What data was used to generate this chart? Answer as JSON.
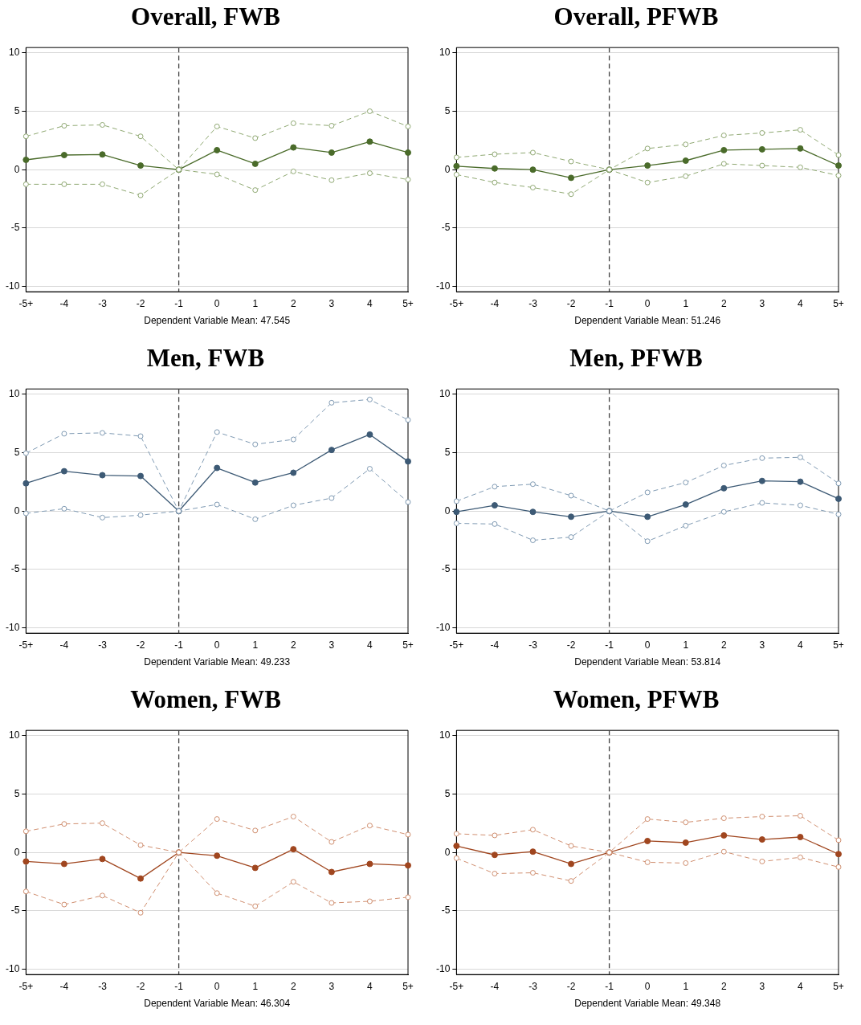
{
  "chart_data": [
    {
      "type": "line",
      "title": "Overall, FWB",
      "xlabel": "Dependent Variable Mean: 47.545",
      "categories": [
        "-5+",
        "-4",
        "-3",
        "-2",
        "-1",
        "0",
        "1",
        "2",
        "3",
        "4",
        "5+"
      ],
      "ylim": [
        -10.45,
        10.45
      ],
      "yticks": [
        -10,
        -5,
        0,
        5,
        10
      ],
      "grid": "y",
      "legend": false,
      "marker": "circle",
      "ref_lines": [
        {
          "axis": "x",
          "value": "-1",
          "color": "#404040",
          "line_style": "dashed"
        }
      ],
      "series": [
        {
          "color": "#8fa872",
          "line_style": "dashed",
          "values": [
            2.85,
            3.76,
            3.83,
            2.85,
            0,
            3.7,
            2.7,
            3.97,
            3.76,
            5.0,
            3.7
          ]
        },
        {
          "color": "#8fa872",
          "line_style": "dashed",
          "values": [
            -1.25,
            -1.25,
            -1.25,
            -2.2,
            0,
            -0.4,
            -1.75,
            -0.15,
            -0.9,
            -0.3,
            -0.85
          ]
        },
        {
          "color": "#4a6b2a",
          "line_style": "solid",
          "values": [
            0.84,
            1.25,
            1.3,
            0.35,
            0,
            1.67,
            0.5,
            1.9,
            1.46,
            2.4,
            1.46
          ]
        }
      ]
    },
    {
      "type": "line",
      "title": "Overall, PFWB",
      "xlabel": "Dependent Variable Mean: 51.246",
      "categories": [
        "-5+",
        "-4",
        "-3",
        "-2",
        "-1",
        "0",
        "1",
        "2",
        "3",
        "4",
        "5+"
      ],
      "ylim": [
        -10.45,
        10.45
      ],
      "yticks": [
        -10,
        -5,
        0,
        5,
        10
      ],
      "grid": "y",
      "legend": false,
      "marker": "circle",
      "ref_lines": [
        {
          "axis": "x",
          "value": "-1",
          "color": "#404040",
          "line_style": "dashed"
        }
      ],
      "series": [
        {
          "color": "#8fa872",
          "line_style": "dashed",
          "values": [
            1.05,
            1.32,
            1.46,
            0.7,
            0,
            1.81,
            2.16,
            2.93,
            3.14,
            3.41,
            1.25
          ]
        },
        {
          "color": "#8fa872",
          "line_style": "dashed",
          "values": [
            -0.42,
            -1.1,
            -1.53,
            -2.1,
            0,
            -1.1,
            -0.56,
            0.5,
            0.35,
            0.2,
            -0.5
          ]
        },
        {
          "color": "#4a6b2a",
          "line_style": "solid",
          "values": [
            0.3,
            0.1,
            0,
            -0.7,
            0,
            0.35,
            0.77,
            1.67,
            1.74,
            1.81,
            0.35
          ]
        }
      ]
    },
    {
      "type": "line",
      "title": "Men, FWB",
      "xlabel": "Dependent Variable Mean: 49.233",
      "categories": [
        "-5+",
        "-4",
        "-3",
        "-2",
        "-1",
        "0",
        "1",
        "2",
        "3",
        "4",
        "5+"
      ],
      "ylim": [
        -10.45,
        10.45
      ],
      "yticks": [
        -10,
        -5,
        0,
        5,
        10
      ],
      "grid": "y",
      "legend": false,
      "marker": "circle",
      "ref_lines": [
        {
          "axis": "x",
          "value": "-1",
          "color": "#404040",
          "line_style": "dashed"
        }
      ],
      "series": [
        {
          "color": "#7f9ab3",
          "line_style": "dashed",
          "values": [
            4.95,
            6.62,
            6.69,
            6.41,
            0,
            6.76,
            5.71,
            6.13,
            9.27,
            9.55,
            7.8
          ]
        },
        {
          "color": "#7f9ab3",
          "line_style": "dashed",
          "values": [
            -0.2,
            0.2,
            -0.56,
            -0.35,
            0,
            0.56,
            -0.7,
            0.49,
            1.11,
            3.62,
            0.77
          ]
        },
        {
          "color": "#3d5a75",
          "line_style": "solid",
          "values": [
            2.37,
            3.41,
            3.07,
            3.0,
            0,
            3.69,
            2.44,
            3.28,
            5.23,
            6.55,
            4.25
          ]
        }
      ]
    },
    {
      "type": "line",
      "title": "Men, PFWB",
      "xlabel": "Dependent Variable Mean: 53.814",
      "categories": [
        "-5+",
        "-4",
        "-3",
        "-2",
        "-1",
        "0",
        "1",
        "2",
        "3",
        "4",
        "5+"
      ],
      "ylim": [
        -10.45,
        10.45
      ],
      "yticks": [
        -10,
        -5,
        0,
        5,
        10
      ],
      "grid": "y",
      "legend": false,
      "marker": "circle",
      "ref_lines": [
        {
          "axis": "x",
          "value": "-1",
          "color": "#404040",
          "line_style": "dashed"
        }
      ],
      "series": [
        {
          "color": "#7f9ab3",
          "line_style": "dashed",
          "values": [
            0.84,
            2.09,
            2.3,
            1.32,
            0,
            1.6,
            2.44,
            3.9,
            4.53,
            4.6,
            2.37
          ]
        },
        {
          "color": "#7f9ab3",
          "line_style": "dashed",
          "values": [
            -1.05,
            -1.11,
            -2.5,
            -2.23,
            0,
            -2.58,
            -1.25,
            -0.07,
            0.7,
            0.49,
            -0.28
          ]
        },
        {
          "color": "#3d5a75",
          "line_style": "solid",
          "values": [
            -0.07,
            0.49,
            -0.07,
            -0.49,
            0,
            -0.49,
            0.56,
            1.95,
            2.58,
            2.51,
            1.05
          ]
        }
      ]
    },
    {
      "type": "line",
      "title": "Women, FWB",
      "xlabel": "Dependent Variable Mean: 46.304",
      "categories": [
        "-5+",
        "-4",
        "-3",
        "-2",
        "-1",
        "0",
        "1",
        "2",
        "3",
        "4",
        "5+"
      ],
      "ylim": [
        -10.45,
        10.45
      ],
      "yticks": [
        -10,
        -5,
        0,
        5,
        10
      ],
      "grid": "y",
      "legend": false,
      "marker": "circle",
      "ref_lines": [
        {
          "axis": "x",
          "value": "-1",
          "color": "#404040",
          "line_style": "dashed"
        }
      ],
      "series": [
        {
          "color": "#d08f70",
          "line_style": "dashed",
          "values": [
            1.81,
            2.44,
            2.51,
            0.63,
            0,
            2.86,
            1.88,
            3.07,
            0.9,
            2.3,
            1.53
          ]
        },
        {
          "color": "#d08f70",
          "line_style": "dashed",
          "values": [
            -3.34,
            -4.46,
            -3.69,
            -5.16,
            0,
            -3.48,
            -4.6,
            -2.51,
            -4.32,
            -4.18,
            -3.83
          ]
        },
        {
          "color": "#a0461f",
          "line_style": "solid",
          "values": [
            -0.77,
            -0.98,
            -0.56,
            -2.23,
            0,
            -0.28,
            -1.32,
            0.28,
            -1.67,
            -0.98,
            -1.11
          ]
        }
      ]
    },
    {
      "type": "line",
      "title": "Women, PFWB",
      "xlabel": "Dependent Variable Mean: 49.348",
      "categories": [
        "-5+",
        "-4",
        "-3",
        "-2",
        "-1",
        "0",
        "1",
        "2",
        "3",
        "4",
        "5+"
      ],
      "ylim": [
        -10.45,
        10.45
      ],
      "yticks": [
        -10,
        -5,
        0,
        5,
        10
      ],
      "grid": "y",
      "legend": false,
      "marker": "circle",
      "ref_lines": [
        {
          "axis": "x",
          "value": "-1",
          "color": "#404040",
          "line_style": "dashed"
        }
      ],
      "series": [
        {
          "color": "#d08f70",
          "line_style": "dashed",
          "values": [
            1.6,
            1.46,
            1.95,
            0.56,
            0,
            2.86,
            2.58,
            2.93,
            3.07,
            3.14,
            1.05
          ]
        },
        {
          "color": "#d08f70",
          "line_style": "dashed",
          "values": [
            -0.49,
            -1.81,
            -1.74,
            -2.44,
            0,
            -0.84,
            -0.91,
            0.07,
            -0.77,
            -0.42,
            -1.25
          ]
        },
        {
          "color": "#a0461f",
          "line_style": "solid",
          "values": [
            0.56,
            -0.21,
            0.07,
            -0.98,
            0,
            0.98,
            0.84,
            1.46,
            1.11,
            1.32,
            -0.14
          ]
        }
      ]
    }
  ]
}
